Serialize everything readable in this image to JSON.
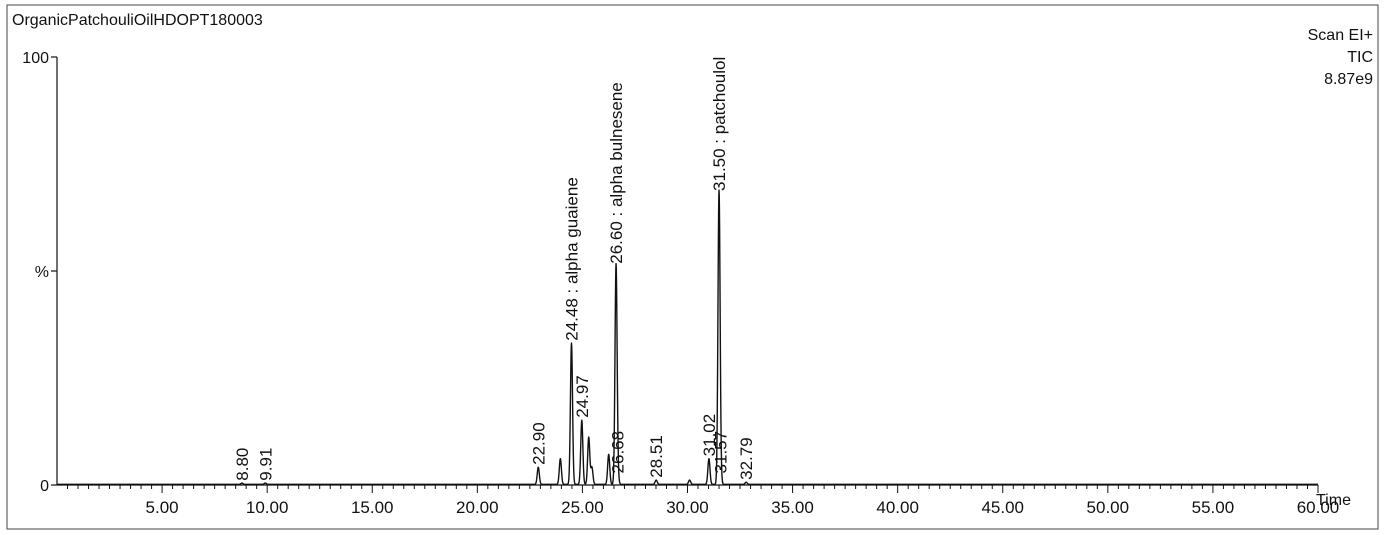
{
  "header": {
    "sample_name": "OrganicPatchouliOilHDOPT180003",
    "scan_mode": "Scan EI+",
    "trace": "TIC",
    "intensity": "8.87e9"
  },
  "colors": {
    "ink": "#111111",
    "paper": "#ffffff",
    "frame": "#444444"
  },
  "chart_data": {
    "type": "line",
    "title": "OrganicPatchouliOilHDOPT180003",
    "xlabel": "Time",
    "ylabel": "%",
    "xlim": [
      0,
      60
    ],
    "ylim": [
      0,
      100
    ],
    "y_tick_labels": [
      {
        "value": 0,
        "label": "0"
      },
      {
        "value": 50,
        "label": "%"
      },
      {
        "value": 100,
        "label": "100"
      }
    ],
    "x_major_ticks": [
      5,
      10,
      15,
      20,
      25,
      30,
      35,
      40,
      45,
      50,
      55,
      60
    ],
    "x_tick_labels": [
      "5.00",
      "10.00",
      "15.00",
      "20.00",
      "25.00",
      "30.00",
      "35.00",
      "40.00",
      "45.00",
      "50.00",
      "55.00",
      "60.00"
    ],
    "x_minor_tick_step": 0.5,
    "peaks": [
      {
        "rt": 8.8,
        "height": 0.3,
        "label": "8.80"
      },
      {
        "rt": 9.91,
        "height": 0.3,
        "label": "9.91"
      },
      {
        "rt": 22.9,
        "height": 4,
        "label": "22.90"
      },
      {
        "rt": 23.95,
        "height": 6,
        "label": ""
      },
      {
        "rt": 24.48,
        "height": 33,
        "label": "24.48 : alpha guaiene"
      },
      {
        "rt": 24.97,
        "height": 15,
        "label": "24.97"
      },
      {
        "rt": 25.3,
        "height": 11,
        "label": ""
      },
      {
        "rt": 25.45,
        "height": 4,
        "label": ""
      },
      {
        "rt": 26.25,
        "height": 7,
        "label": ""
      },
      {
        "rt": 26.6,
        "height": 51,
        "label": "26.60 : alpha bulnesene"
      },
      {
        "rt": 26.68,
        "height": 2,
        "label": "26.68"
      },
      {
        "rt": 28.51,
        "height": 1,
        "label": "28.51"
      },
      {
        "rt": 30.1,
        "height": 1,
        "label": ""
      },
      {
        "rt": 31.02,
        "height": 6,
        "label": "31.02"
      },
      {
        "rt": 31.5,
        "height": 68,
        "label": "31.50 : patchoulol"
      },
      {
        "rt": 31.57,
        "height": 2,
        "label": "31.57"
      },
      {
        "rt": 32.79,
        "height": 0.5,
        "label": "32.79"
      }
    ],
    "grid": false,
    "legend": "none"
  }
}
